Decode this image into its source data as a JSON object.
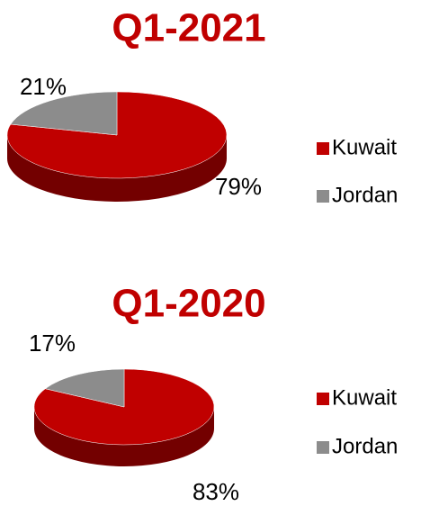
{
  "chart_data": [
    {
      "type": "pie",
      "title": "Q1-2021",
      "categories": [
        "Kuwait",
        "Jordan"
      ],
      "values": [
        79,
        21
      ],
      "value_labels": [
        "79%",
        "21%"
      ],
      "colors": [
        "#c00000",
        "#8c8c8c"
      ],
      "legend": "right"
    },
    {
      "type": "pie",
      "title": "Q1-2020",
      "categories": [
        "Kuwait",
        "Jordan"
      ],
      "values": [
        83,
        17
      ],
      "value_labels": [
        "83%",
        "17%"
      ],
      "colors": [
        "#c00000",
        "#8c8c8c"
      ],
      "legend": "right"
    }
  ]
}
